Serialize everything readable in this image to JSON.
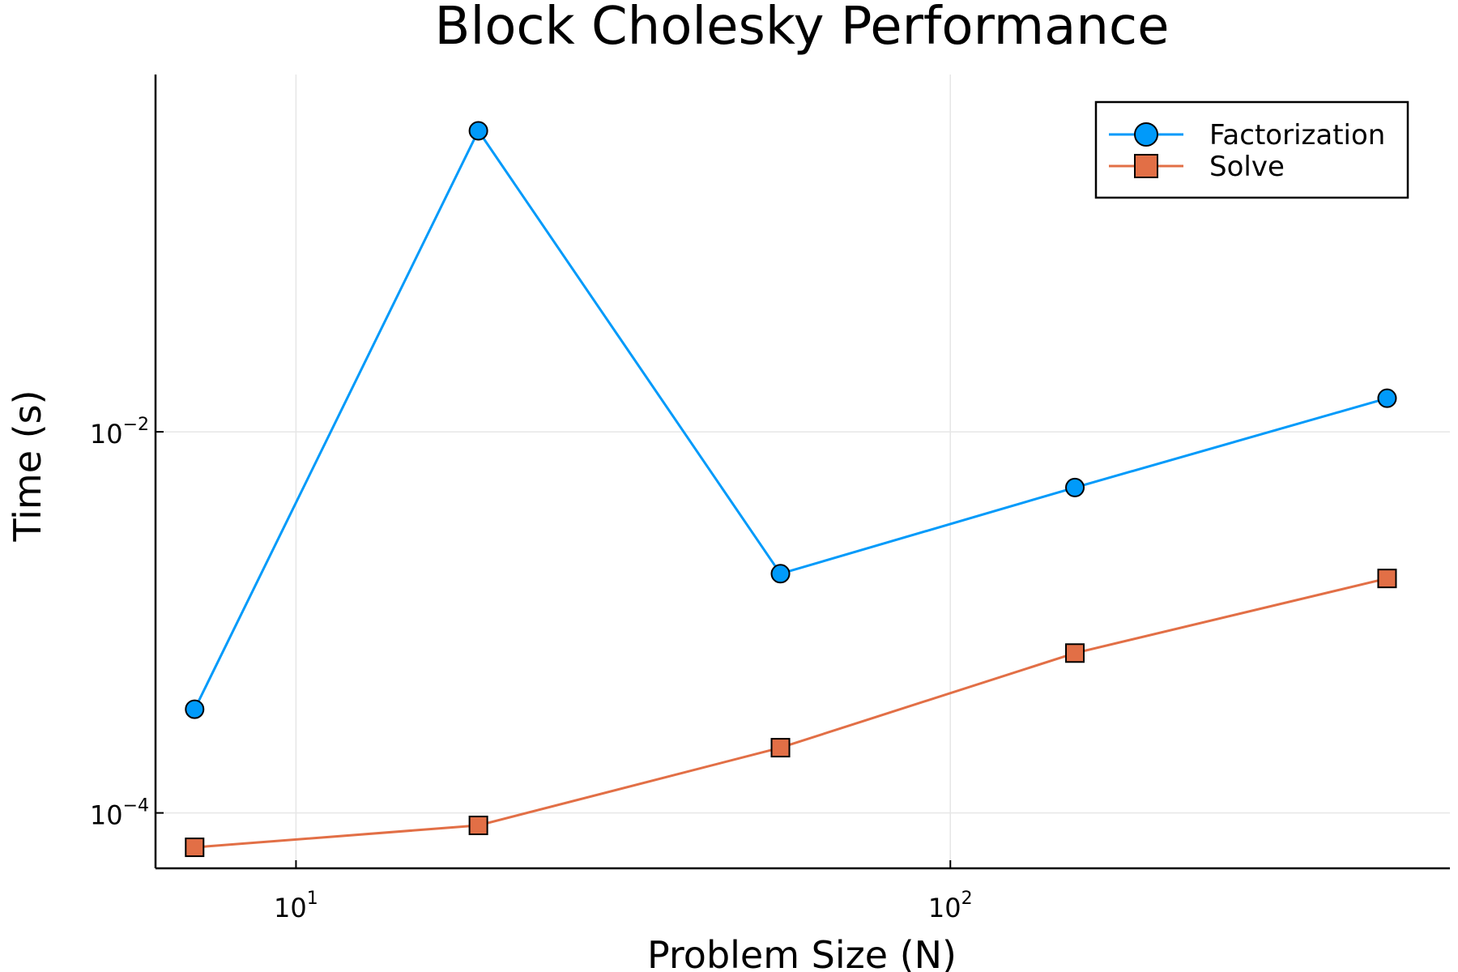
{
  "chart_data": {
    "type": "line",
    "title": "Block Cholesky Performance",
    "xlabel": "Problem Size (N)",
    "ylabel": "Time (s)",
    "xscale": "log",
    "yscale": "log",
    "xlim": [
      6.1,
      580
    ],
    "ylim": [
      5.12e-05,
      0.75
    ],
    "xticks": [
      {
        "value": 10,
        "base": "10",
        "exp": "1"
      },
      {
        "value": 100,
        "base": "10",
        "exp": "2"
      }
    ],
    "yticks": [
      {
        "value": 0.01,
        "base": "10",
        "exp": "−2"
      },
      {
        "value": 0.0001,
        "base": "10",
        "exp": "−4"
      }
    ],
    "grid": true,
    "legend_position": "top-right",
    "series": [
      {
        "name": "Factorization",
        "color": "#009AFA",
        "marker": "circle",
        "x": [
          7,
          19,
          55,
          155,
          465
        ],
        "y": [
          0.00035,
          0.38,
          0.0018,
          0.0051,
          0.015
        ]
      },
      {
        "name": "Solve",
        "color": "#E26F46",
        "marker": "square",
        "x": [
          7,
          19,
          55,
          155,
          465
        ],
        "y": [
          6.6e-05,
          8.6e-05,
          0.00022,
          0.00069,
          0.0017
        ]
      }
    ]
  }
}
